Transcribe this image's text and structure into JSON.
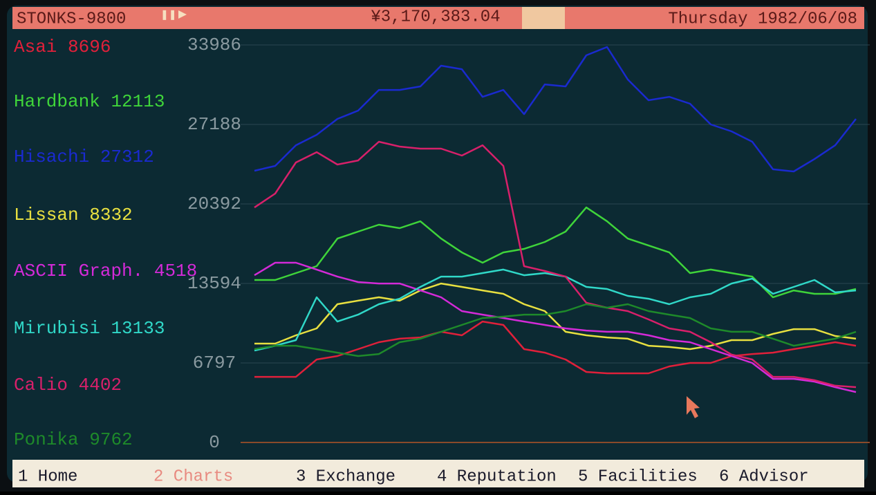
{
  "header": {
    "title": "STONKS-9800",
    "money": "¥3,170,383.04",
    "date": "Thursday 1982/06/08"
  },
  "nav": [
    "1 Home",
    "2 Charts",
    "3 Exchange",
    "4 Reputation",
    "5 Facilities",
    "6 Advisor"
  ],
  "chart_data": {
    "type": "line",
    "ylim": [
      0,
      33986
    ],
    "yticks": [
      0,
      6797,
      13594,
      20392,
      27188,
      33986
    ],
    "grid": true,
    "series": [
      {
        "name": "Asai",
        "current": 8696,
        "color": "#e0203a",
        "values": [
          5610,
          5610,
          5610,
          7090,
          7390,
          7980,
          8570,
          8870,
          8980,
          9460,
          9160,
          10340,
          10050,
          7980,
          7680,
          7090,
          6030,
          5910,
          5910,
          5910,
          6500,
          6800,
          6800,
          7390,
          7560,
          7680,
          7980,
          8270,
          8570,
          8270
        ]
      },
      {
        "name": "Hardbank",
        "current": 12113,
        "color": "#3fd43a",
        "values": [
          13890,
          13890,
          14480,
          15070,
          17430,
          18030,
          18620,
          18320,
          18910,
          17430,
          16250,
          15370,
          16250,
          16550,
          17140,
          18030,
          20090,
          18910,
          17430,
          16840,
          16250,
          14480,
          14780,
          14480,
          14180,
          12410,
          13000,
          12710,
          12710,
          13120
        ]
      },
      {
        "name": "Hisachi",
        "current": 27312,
        "color": "#1a2ad0",
        "values": [
          23230,
          23640,
          25410,
          26300,
          27660,
          28370,
          30140,
          30140,
          30440,
          32210,
          31910,
          29550,
          30140,
          28070,
          30610,
          30440,
          33100,
          33810,
          31030,
          29260,
          29550,
          28960,
          27190,
          26600,
          25710,
          23350,
          23170,
          24230,
          25410,
          27660
        ]
      },
      {
        "name": "Lissan",
        "current": 8332,
        "color": "#e8e040",
        "values": [
          8450,
          8450,
          9160,
          9750,
          11820,
          12120,
          12410,
          12120,
          13000,
          13590,
          13300,
          13000,
          12710,
          11820,
          11230,
          9460,
          9160,
          8980,
          8870,
          8270,
          8160,
          7980,
          8270,
          8750,
          8750,
          9280,
          9690,
          9690,
          9100,
          8870
        ]
      },
      {
        "name": "ASCII Graph.",
        "current": 4518,
        "color": "#d42ad8",
        "values": [
          14300,
          15370,
          15370,
          14780,
          14180,
          13710,
          13590,
          13590,
          13000,
          12410,
          11230,
          10930,
          10640,
          10340,
          10050,
          9750,
          9570,
          9460,
          9460,
          9160,
          8750,
          8570,
          7980,
          7390,
          6800,
          5440,
          5440,
          5200,
          4730,
          4310
        ]
      },
      {
        "name": "Mirubisi",
        "current": 13133,
        "color": "#30d8c8",
        "values": [
          7860,
          8270,
          8750,
          12410,
          10340,
          10930,
          11820,
          12290,
          13300,
          14180,
          14180,
          14480,
          14780,
          14300,
          14480,
          14180,
          13300,
          13120,
          12530,
          12290,
          11820,
          12410,
          12710,
          13590,
          14010,
          12710,
          13300,
          13890,
          12830,
          13000
        ]
      },
      {
        "name": "Calio",
        "current": 4402,
        "color": "#d8206a",
        "values": [
          20090,
          21280,
          23940,
          24820,
          23760,
          24110,
          25710,
          25300,
          25120,
          25120,
          24530,
          25410,
          23640,
          15070,
          14660,
          14180,
          11940,
          11520,
          11230,
          10520,
          9750,
          9460,
          8570,
          7510,
          7090,
          5610,
          5610,
          5320,
          4850,
          4730
        ]
      },
      {
        "name": "Ponika",
        "current": 9762,
        "color": "#1e8a2a",
        "values": [
          7980,
          8270,
          8270,
          7980,
          7680,
          7390,
          7560,
          8570,
          8870,
          9460,
          10050,
          10640,
          10760,
          10930,
          10930,
          11230,
          11820,
          11520,
          11820,
          11230,
          10930,
          10640,
          9750,
          9460,
          9460,
          8870,
          8270,
          8570,
          8870,
          9460
        ]
      }
    ]
  }
}
